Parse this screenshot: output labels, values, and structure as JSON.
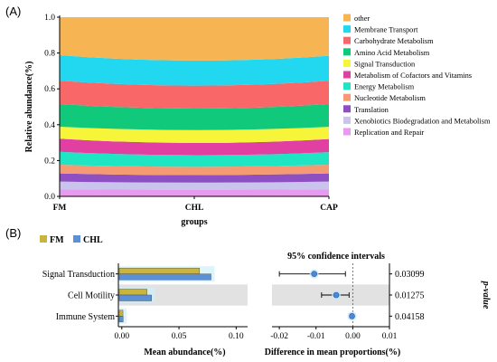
{
  "panel_a_label": "(A)",
  "panel_b_label": "(B)",
  "chart_data": [
    {
      "type": "area",
      "stacked": true,
      "ylabel": "Relative abundance(%)",
      "xlabel": "groups",
      "categories": [
        "FM",
        "CHL",
        "CAP"
      ],
      "ylim": [
        0,
        1.0
      ],
      "yticks": [
        "0.0",
        "0.2",
        "0.4",
        "0.6",
        "0.8",
        "1.0"
      ],
      "legend_position": "right",
      "series": [
        {
          "name": "Replication and Repair",
          "color": "#e89af0",
          "values": [
            0.04,
            0.037,
            0.04
          ]
        },
        {
          "name": "Xenobiotics Biodegradation and Metabolism",
          "color": "#c8c4ec",
          "values": [
            0.043,
            0.04,
            0.043
          ]
        },
        {
          "name": "Translation",
          "color": "#8e4fc2",
          "values": [
            0.045,
            0.042,
            0.045
          ]
        },
        {
          "name": "Nucleotide Metabolism",
          "color": "#f59a72",
          "values": [
            0.049,
            0.046,
            0.049
          ]
        },
        {
          "name": "Energy Metabolism",
          "color": "#1fe6c2",
          "values": [
            0.072,
            0.065,
            0.07
          ]
        },
        {
          "name": "Metabolism of Cofactors and Vitamins",
          "color": "#e23fa3",
          "values": [
            0.073,
            0.068,
            0.073
          ]
        },
        {
          "name": "Signal Transduction",
          "color": "#f7f53a",
          "values": [
            0.067,
            0.072,
            0.068
          ]
        },
        {
          "name": "Amino Acid Metabolism",
          "color": "#10c97a",
          "values": [
            0.127,
            0.12,
            0.128
          ]
        },
        {
          "name": "Carbohydrate Metabolism",
          "color": "#f96768",
          "values": [
            0.13,
            0.128,
            0.129
          ]
        },
        {
          "name": "Membrane Transport",
          "color": "#22d8f0",
          "values": [
            0.142,
            0.14,
            0.14
          ]
        },
        {
          "name": "other",
          "color": "#f7b452",
          "values": [
            0.212,
            0.242,
            0.215
          ]
        }
      ]
    },
    {
      "type": "bar",
      "orientation": "horizontal",
      "xlabel": "Mean abundance(%)",
      "categories": [
        "Signal Transduction",
        "Cell Motility",
        "Immune System"
      ],
      "xlim": [
        -0.003,
        0.11
      ],
      "xticks": [
        "0.00",
        "0.05",
        "0.10"
      ],
      "series": [
        {
          "name": "FM",
          "color": "#c9b43e",
          "values": [
            0.068,
            0.022,
            0.001
          ]
        },
        {
          "name": "CHL",
          "color": "#5b8fd6",
          "values": [
            0.078,
            0.026,
            0.0012
          ]
        }
      ]
    },
    {
      "type": "scatter",
      "title": "95% confidence intervals",
      "xlabel": "Difference in mean proportions(%)",
      "ylabel": "p-value",
      "categories": [
        "Signal Transduction",
        "Cell Motility",
        "Immune System"
      ],
      "xlim": [
        -0.022,
        0.01
      ],
      "xticks": [
        "-0.02",
        "-0.01",
        "0.00",
        "0.01"
      ],
      "points": [
        {
          "value": -0.0105,
          "low": -0.02,
          "high": -0.002
        },
        {
          "value": -0.0045,
          "low": -0.0085,
          "high": -0.001
        },
        {
          "value": -0.0002,
          "low": -0.0008,
          "high": 0.0002
        }
      ],
      "pvalues": [
        "0.03099",
        "0.01275",
        "0.04158"
      ],
      "point_color": "#4f86d9"
    }
  ]
}
